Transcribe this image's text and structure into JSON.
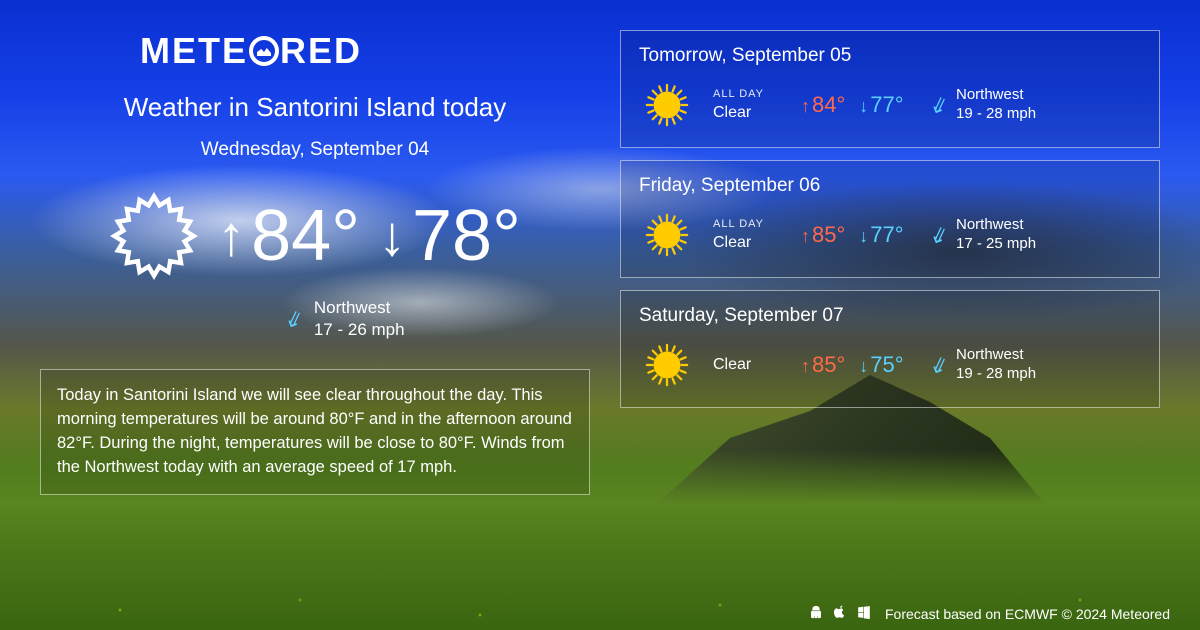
{
  "brand": {
    "name_pre": "METE",
    "name_post": "RED"
  },
  "today": {
    "title": "Weather in Santorini Island today",
    "date": "Wednesday, September 04",
    "high": "84°",
    "low": "78°",
    "wind_dir": "Northwest",
    "wind_speed": "17 - 26 mph",
    "summary": "Today in Santorini Island we will see clear throughout the day. This morning temperatures will be around 80°F and in the afternoon around 82°F. During the night, temperatures will be close to 80°F. Winds from the Northwest today with an average speed of 17 mph."
  },
  "forecast": [
    {
      "date": "Tomorrow, September 05",
      "allday": "ALL DAY",
      "condition": "Clear",
      "high": "84°",
      "low": "77°",
      "wind_dir": "Northwest",
      "wind_speed": "19 - 28 mph"
    },
    {
      "date": "Friday, September 06",
      "allday": "ALL DAY",
      "condition": "Clear",
      "high": "85°",
      "low": "77°",
      "wind_dir": "Northwest",
      "wind_speed": "17 - 25 mph"
    },
    {
      "date": "Saturday, September 07",
      "allday": "",
      "condition": "Clear",
      "high": "85°",
      "low": "75°",
      "wind_dir": "Northwest",
      "wind_speed": "19 - 28 mph"
    }
  ],
  "footer": {
    "text": "Forecast based on ECMWF © 2024 Meteored"
  },
  "colors": {
    "text": "#ffffff",
    "high": "#ff6a4a",
    "low": "#5ad0ff",
    "wind_icon": "#5ad0ff",
    "sun_fill": "#ffcc00",
    "sun_stroke": "#ff9900",
    "card_border": "rgba(255,255,255,0.5)"
  }
}
